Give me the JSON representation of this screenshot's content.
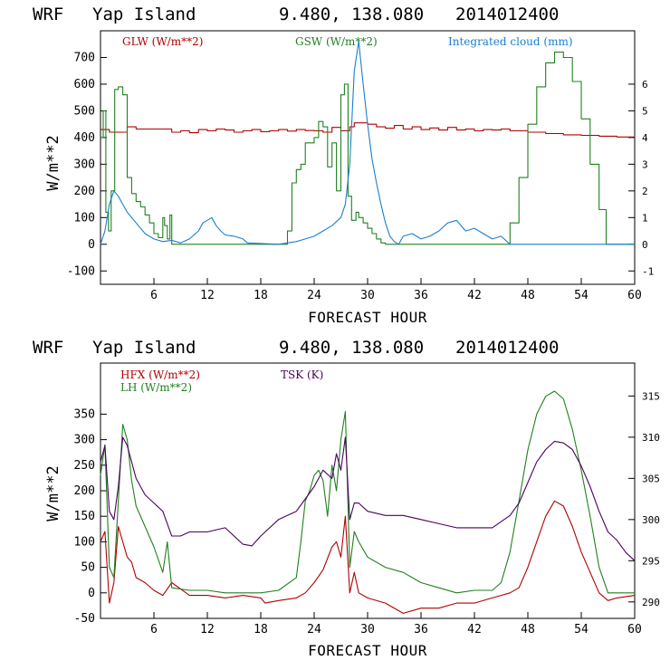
{
  "chart_data": [
    {
      "type": "line",
      "header": {
        "model": "WRF",
        "location": "Yap Island",
        "coords": "9.480, 138.080",
        "date": "2014012400"
      },
      "xlabel": "FORECAST HOUR",
      "ylabel": "W/m**2",
      "xlim": [
        0,
        60
      ],
      "ylim": [
        -150,
        800
      ],
      "y2lim": [
        -1.5,
        8
      ],
      "xticks": [
        6,
        12,
        18,
        24,
        30,
        36,
        42,
        48,
        54,
        60
      ],
      "yticks": [
        -100,
        0,
        100,
        200,
        300,
        400,
        500,
        600,
        700
      ],
      "y2ticks": [
        -1,
        0,
        1,
        2,
        3,
        4,
        5,
        6
      ],
      "series": [
        {
          "name": "GLW (W/m**2)",
          "color": "#b00000",
          "axis": "left",
          "step": true,
          "x": [
            0,
            1,
            3,
            4,
            7,
            8,
            9,
            10,
            11,
            12,
            13,
            14,
            15,
            16,
            17,
            18,
            19,
            20,
            21,
            22,
            23,
            24,
            25,
            26,
            27,
            28,
            28.5,
            30,
            31,
            32,
            33,
            34,
            35,
            36,
            37,
            38,
            39,
            40,
            41,
            42,
            43,
            44,
            45,
            46,
            48,
            50,
            52,
            54,
            56,
            58,
            60
          ],
          "y": [
            430,
            420,
            440,
            432,
            432,
            420,
            425,
            418,
            430,
            425,
            432,
            428,
            420,
            425,
            430,
            422,
            425,
            430,
            424,
            430,
            426,
            425,
            420,
            438,
            425,
            440,
            455,
            450,
            440,
            435,
            445,
            432,
            440,
            430,
            436,
            428,
            438,
            428,
            432,
            425,
            430,
            428,
            432,
            425,
            420,
            415,
            410,
            408,
            405,
            402,
            400
          ]
        },
        {
          "name": "GSW (W/m**2)",
          "color": "#208020",
          "axis": "left",
          "step": true,
          "x": [
            0,
            0.3,
            0.6,
            0.9,
            1.2,
            1.6,
            2,
            2.5,
            3,
            3.5,
            4,
            4.5,
            5,
            5.5,
            6,
            6.5,
            7,
            7.2,
            7.5,
            7.8,
            8,
            8.5,
            9,
            20,
            21,
            21.5,
            22,
            22.5,
            23,
            23.5,
            24,
            24.5,
            25,
            25.5,
            26,
            26.5,
            27,
            27.4,
            27.8,
            28.2,
            28.7,
            29,
            29.5,
            30,
            30.5,
            31,
            31.5,
            32,
            32.5,
            33,
            45,
            46,
            47,
            48,
            49,
            50,
            51,
            52,
            53,
            54,
            55,
            56,
            56.8,
            60
          ],
          "y": [
            400,
            500,
            120,
            50,
            200,
            580,
            590,
            560,
            250,
            190,
            160,
            140,
            110,
            80,
            40,
            25,
            100,
            70,
            20,
            110,
            0,
            0,
            0,
            0,
            50,
            230,
            280,
            300,
            380,
            380,
            400,
            460,
            440,
            290,
            380,
            200,
            560,
            600,
            180,
            90,
            120,
            100,
            80,
            60,
            40,
            20,
            5,
            0,
            0,
            0,
            0,
            80,
            250,
            450,
            590,
            680,
            720,
            700,
            610,
            470,
            300,
            130,
            0,
            0
          ]
        },
        {
          "name": "Integrated cloud (mm)",
          "color": "#1a7fd0",
          "axis": "right",
          "x": [
            0,
            0.5,
            1,
            1.5,
            2,
            2.5,
            3,
            4,
            5,
            6,
            7,
            8,
            9,
            10,
            11,
            11.5,
            12,
            12.5,
            13,
            13.5,
            14,
            15,
            16,
            16.5,
            20,
            21,
            22,
            23,
            24,
            25,
            26,
            27,
            27.5,
            28,
            28.5,
            29,
            29.5,
            30,
            30.5,
            31,
            31.5,
            32,
            32.5,
            33,
            33.5,
            34,
            35,
            36,
            37,
            38,
            39,
            40,
            41,
            42,
            43,
            44,
            45,
            46,
            60
          ],
          "y": [
            0,
            0.5,
            1.5,
            2,
            1.8,
            1.5,
            1.2,
            0.8,
            0.4,
            0.2,
            0.1,
            0.15,
            0.05,
            0.2,
            0.5,
            0.8,
            0.9,
            1,
            0.7,
            0.5,
            0.35,
            0.3,
            0.2,
            0.05,
            0,
            0.05,
            0.1,
            0.2,
            0.3,
            0.5,
            0.7,
            1,
            1.5,
            3,
            6.5,
            7.6,
            6,
            4.5,
            3.2,
            2.3,
            1.5,
            0.8,
            0.3,
            0.1,
            0,
            0.3,
            0.4,
            0.2,
            0.3,
            0.5,
            0.8,
            0.9,
            0.5,
            0.6,
            0.4,
            0.2,
            0.3,
            0,
            0
          ]
        }
      ]
    },
    {
      "type": "line",
      "header": {
        "model": "WRF",
        "location": "Yap Island",
        "coords": "9.480, 138.080",
        "date": "2014012400"
      },
      "xlabel": "FORECAST HOUR",
      "ylabel": "W/m**2",
      "xlim": [
        0,
        60
      ],
      "ylim": [
        -50,
        450
      ],
      "y2lim": [
        288,
        319
      ],
      "xticks": [
        6,
        12,
        18,
        24,
        30,
        36,
        42,
        48,
        54,
        60
      ],
      "yticks": [
        -50,
        0,
        50,
        100,
        150,
        200,
        250,
        300,
        350
      ],
      "y2ticks": [
        290,
        295,
        300,
        305,
        310,
        315
      ],
      "series": [
        {
          "name": "HFX (W/m**2)",
          "color": "#b00000",
          "axis": "left",
          "x": [
            0,
            0.5,
            1,
            1.5,
            2,
            2.5,
            3,
            3.5,
            4,
            5,
            6,
            7,
            8,
            10,
            12,
            14,
            16,
            18,
            18.5,
            20,
            22,
            23,
            24,
            25,
            26,
            26.5,
            27,
            27.5,
            28,
            28.5,
            29,
            30,
            32,
            34,
            36,
            38,
            40,
            42,
            44,
            45,
            46,
            47,
            48,
            49,
            50,
            51,
            52,
            53,
            54,
            55,
            56,
            57,
            58,
            60
          ],
          "y": [
            100,
            120,
            -20,
            20,
            130,
            100,
            70,
            60,
            30,
            20,
            5,
            -5,
            20,
            -5,
            -5,
            -10,
            -5,
            -10,
            -20,
            -15,
            -10,
            0,
            20,
            45,
            90,
            100,
            70,
            150,
            0,
            40,
            0,
            -10,
            -20,
            -40,
            -30,
            -30,
            -20,
            -20,
            -10,
            -5,
            0,
            10,
            50,
            100,
            150,
            180,
            170,
            130,
            80,
            40,
            0,
            -15,
            -10,
            -5
          ]
        },
        {
          "name": "LH  (W/m**2)",
          "color": "#208020",
          "axis": "left",
          "x": [
            0,
            0.5,
            1,
            1.5,
            2,
            2.5,
            3,
            3.5,
            4,
            5,
            6,
            7,
            7.5,
            8,
            10,
            12,
            14,
            16,
            18,
            20,
            22,
            22.5,
            23,
            23.5,
            24,
            24.5,
            25,
            25.5,
            26,
            26.5,
            27,
            27.5,
            28,
            28.5,
            29,
            30,
            32,
            34,
            36,
            38,
            40,
            42,
            44,
            45,
            46,
            47,
            48,
            49,
            50,
            51,
            52,
            53,
            54,
            55,
            56,
            57,
            58,
            60
          ],
          "y": [
            230,
            290,
            50,
            30,
            180,
            330,
            300,
            220,
            170,
            130,
            90,
            40,
            100,
            10,
            5,
            5,
            0,
            0,
            0,
            5,
            30,
            100,
            180,
            200,
            230,
            240,
            220,
            150,
            250,
            200,
            300,
            355,
            50,
            120,
            100,
            70,
            50,
            40,
            20,
            10,
            0,
            5,
            5,
            20,
            80,
            180,
            280,
            350,
            385,
            395,
            380,
            320,
            240,
            150,
            50,
            0,
            0,
            0
          ]
        },
        {
          "name": "TSK (K)",
          "color": "#4b0060",
          "axis": "right",
          "x": [
            0,
            0.5,
            1,
            1.5,
            2,
            2.5,
            3,
            3.5,
            4,
            5,
            6,
            7,
            8,
            9,
            10,
            12,
            14,
            16,
            17,
            18,
            20,
            22,
            24,
            25,
            26,
            26.5,
            27,
            27.5,
            28,
            28.5,
            29,
            30,
            32,
            34,
            36,
            38,
            40,
            42,
            44,
            46,
            47,
            48,
            49,
            50,
            51,
            52,
            53,
            54,
            55,
            56,
            57,
            58,
            59,
            60
          ],
          "y": [
            307,
            309,
            301,
            300,
            304,
            310,
            309,
            307,
            305,
            303,
            302,
            301,
            298,
            298,
            298.5,
            298.5,
            299,
            297,
            296.8,
            298,
            300,
            301,
            304,
            306,
            305,
            308,
            306,
            310,
            300,
            302,
            302,
            301,
            300.5,
            300.5,
            300,
            299.5,
            299,
            299,
            299,
            300.5,
            302,
            304.5,
            307,
            308.5,
            309.5,
            309.3,
            308.5,
            306.5,
            304,
            301,
            298.5,
            297.5,
            296,
            295
          ]
        }
      ]
    }
  ]
}
